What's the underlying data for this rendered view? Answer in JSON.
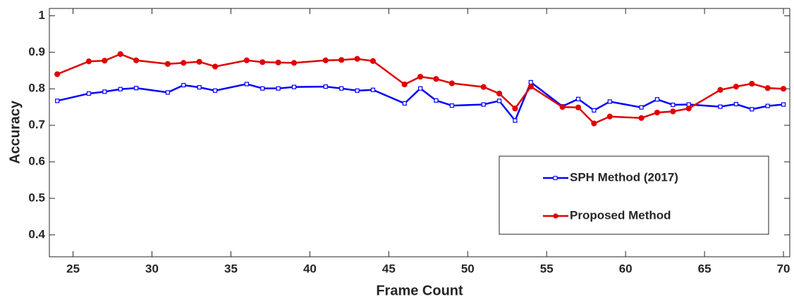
{
  "chart_data": {
    "type": "line",
    "xlabel": "Frame Count",
    "ylabel": "Accuracy",
    "x": [
      24,
      26,
      27,
      28,
      29,
      31,
      32,
      33,
      34,
      36,
      37,
      38,
      39,
      41,
      42,
      43,
      44,
      46,
      47,
      48,
      49,
      51,
      52,
      53,
      54,
      56,
      57,
      58,
      59,
      61,
      62,
      63,
      64,
      66,
      67,
      68,
      69,
      70
    ],
    "series": [
      {
        "name": "SPH Method (2017)",
        "color": "#0000ff",
        "marker": "square",
        "values": [
          0.767,
          0.787,
          0.792,
          0.799,
          0.802,
          0.79,
          0.81,
          0.804,
          0.795,
          0.813,
          0.801,
          0.801,
          0.805,
          0.806,
          0.801,
          0.795,
          0.797,
          0.76,
          0.801,
          0.768,
          0.754,
          0.757,
          0.767,
          0.713,
          0.818,
          0.752,
          0.772,
          0.741,
          0.765,
          0.749,
          0.771,
          0.756,
          0.757,
          0.751,
          0.758,
          0.744,
          0.753,
          0.757
        ]
      },
      {
        "name": "Proposed Method",
        "color": "#e00000",
        "marker": "circle",
        "values": [
          0.84,
          0.875,
          0.877,
          0.895,
          0.878,
          0.868,
          0.871,
          0.874,
          0.861,
          0.878,
          0.873,
          0.872,
          0.871,
          0.878,
          0.879,
          0.882,
          0.876,
          0.812,
          0.833,
          0.827,
          0.815,
          0.805,
          0.787,
          0.746,
          0.806,
          0.75,
          0.749,
          0.705,
          0.724,
          0.72,
          0.735,
          0.738,
          0.746,
          0.797,
          0.806,
          0.814,
          0.802,
          0.8
        ]
      }
    ],
    "xlim": [
      23.5,
      70.4
    ],
    "xticks": [
      25,
      30,
      35,
      40,
      45,
      50,
      55,
      60,
      65,
      70
    ],
    "ylim": [
      0.34,
      1.02
    ],
    "yticks": [
      0.4,
      0.5,
      0.6,
      0.7,
      0.8,
      0.9,
      1
    ],
    "grid": false
  }
}
